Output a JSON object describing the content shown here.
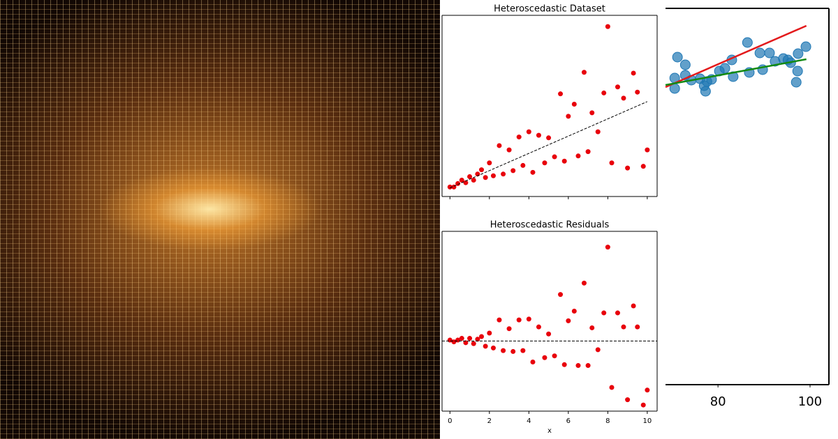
{
  "chart_data": [
    {
      "type": "scatter",
      "title": "Heteroscedastic Dataset",
      "x": [
        0,
        0.2,
        0.4,
        0.6,
        0.8,
        1.0,
        1.2,
        1.4,
        1.6,
        1.8,
        2.0,
        2.2,
        2.5,
        2.7,
        3.0,
        3.2,
        3.5,
        3.7,
        4.0,
        4.2,
        4.5,
        4.8,
        5.0,
        5.3,
        5.6,
        5.8,
        6.0,
        6.3,
        6.5,
        6.8,
        7.0,
        7.2,
        7.5,
        7.8,
        8.0,
        8.2,
        8.5,
        8.8,
        9.0,
        9.3,
        9.5,
        9.8,
        10.0
      ],
      "values": [
        0.1,
        0.1,
        0.5,
        0.9,
        0.6,
        1.3,
        0.9,
        1.6,
        2.1,
        1.2,
        2.9,
        1.4,
        4.9,
        1.6,
        4.4,
        2.0,
        5.9,
        2.6,
        6.5,
        1.8,
        6.1,
        2.9,
        5.8,
        3.6,
        10.9,
        3.1,
        8.3,
        9.7,
        3.7,
        13.4,
        4.2,
        8.7,
        6.5,
        11.0,
        18.7,
        2.9,
        11.7,
        10.4,
        2.3,
        13.3,
        11.1,
        2.5,
        4.4
      ],
      "color": "#e8000b",
      "lines": [
        {
          "x": [
            0,
            10
          ],
          "values": [
            0,
            10
          ],
          "color": "#000000",
          "style": "dashed"
        }
      ],
      "xlim": [
        -0.4,
        10.5
      ],
      "ylim": [
        -1,
        20
      ],
      "xticks": [
        0,
        2,
        4,
        6,
        8,
        10
      ],
      "show_xtick_labels": false
    },
    {
      "type": "scatter",
      "title": "Heteroscedastic Residuals",
      "xlabel": "x",
      "x": [
        0,
        0.2,
        0.4,
        0.6,
        0.8,
        1.0,
        1.2,
        1.4,
        1.6,
        1.8,
        2.0,
        2.2,
        2.5,
        2.7,
        3.0,
        3.2,
        3.5,
        3.7,
        4.0,
        4.2,
        4.5,
        4.8,
        5.0,
        5.3,
        5.6,
        5.8,
        6.0,
        6.3,
        6.5,
        6.8,
        7.0,
        7.2,
        7.5,
        7.8,
        8.0,
        8.2,
        8.5,
        8.8,
        9.0,
        9.3,
        9.5,
        9.8,
        10.0
      ],
      "values": [
        0.1,
        -0.1,
        0.1,
        0.3,
        -0.2,
        0.3,
        -0.3,
        0.2,
        0.5,
        -0.6,
        0.9,
        -0.8,
        2.4,
        -1.1,
        1.4,
        -1.2,
        2.4,
        -1.1,
        2.5,
        -2.4,
        1.6,
        -1.9,
        0.8,
        -1.7,
        5.3,
        -2.7,
        2.3,
        3.4,
        -2.8,
        6.6,
        -2.8,
        1.5,
        -1.0,
        3.2,
        10.7,
        -5.3,
        3.2,
        1.6,
        -6.7,
        4.0,
        1.6,
        -7.3,
        -5.6
      ],
      "color": "#e8000b",
      "lines": [
        {
          "x": [
            -0.4,
            10.5
          ],
          "values": [
            0,
            0
          ],
          "color": "#000000",
          "style": "dashed"
        }
      ],
      "xlim": [
        -0.4,
        10.5
      ],
      "ylim": [
        -8,
        12.5
      ],
      "xticks": [
        0,
        2,
        4,
        6,
        8,
        10
      ],
      "show_xtick_labels": true
    },
    {
      "type": "scatter",
      "x": [
        71.2,
        70.6,
        70.6,
        72.9,
        72.9,
        74.2,
        76.1,
        77.0,
        77.3,
        77.6,
        78.6,
        80.3,
        81.5,
        83.0,
        83.3,
        86.4,
        86.8,
        89.1,
        89.7,
        91.2,
        92.4,
        94.2,
        95.2,
        95.8,
        97.0,
        97.3,
        97.4,
        99.1
      ],
      "values": [
        47.0,
        44.0,
        42.5,
        45.9,
        44.4,
        43.7,
        43.9,
        42.9,
        42.1,
        43.5,
        43.8,
        45.0,
        45.4,
        46.6,
        44.2,
        49.1,
        44.8,
        47.6,
        45.2,
        47.6,
        46.4,
        46.8,
        46.6,
        46.2,
        43.4,
        45.0,
        47.5,
        48.5
      ],
      "color": "#1f77b4",
      "lines": [
        {
          "x": [
            68.6,
            99.2
          ],
          "values": [
            42.7,
            51.5
          ],
          "color": "#e31a1c",
          "style": "solid"
        },
        {
          "x": [
            68.6,
            99.2
          ],
          "values": [
            43.0,
            46.7
          ],
          "color": "#138a13",
          "style": "solid"
        }
      ],
      "xlim": [
        68.6,
        104.1
      ],
      "ylim": [
        0,
        54
      ],
      "xticks": [
        80,
        100
      ],
      "show_xtick_labels": true
    }
  ]
}
